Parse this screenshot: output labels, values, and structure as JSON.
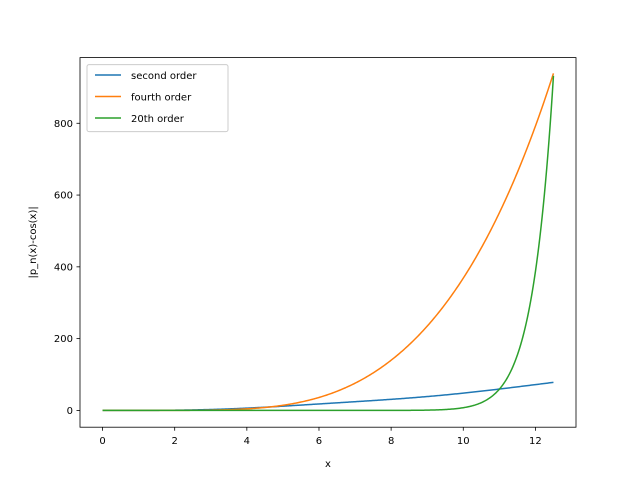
{
  "chart_data": {
    "type": "line",
    "title": "",
    "xlabel": "x",
    "ylabel": "|p_n(x)-cos(x)|",
    "xlim": [
      -0.625,
      13.125
    ],
    "ylim": [
      -46.8,
      983.0
    ],
    "xticks": [
      0,
      2,
      4,
      6,
      8,
      10,
      12
    ],
    "yticks": [
      0,
      200,
      400,
      600,
      800
    ],
    "grid": false,
    "legend_position": "upper-left",
    "series": [
      {
        "name": "second order",
        "color": "#1f77b4",
        "kind": "taylor",
        "order": 2
      },
      {
        "name": "fourth order",
        "color": "#ff7f0e",
        "kind": "taylor",
        "order": 4
      },
      {
        "name": "20th order",
        "color": "#2ca02c",
        "kind": "taylor",
        "order": 20
      }
    ],
    "x_range": [
      0,
      12.5
    ],
    "samples": 400
  }
}
